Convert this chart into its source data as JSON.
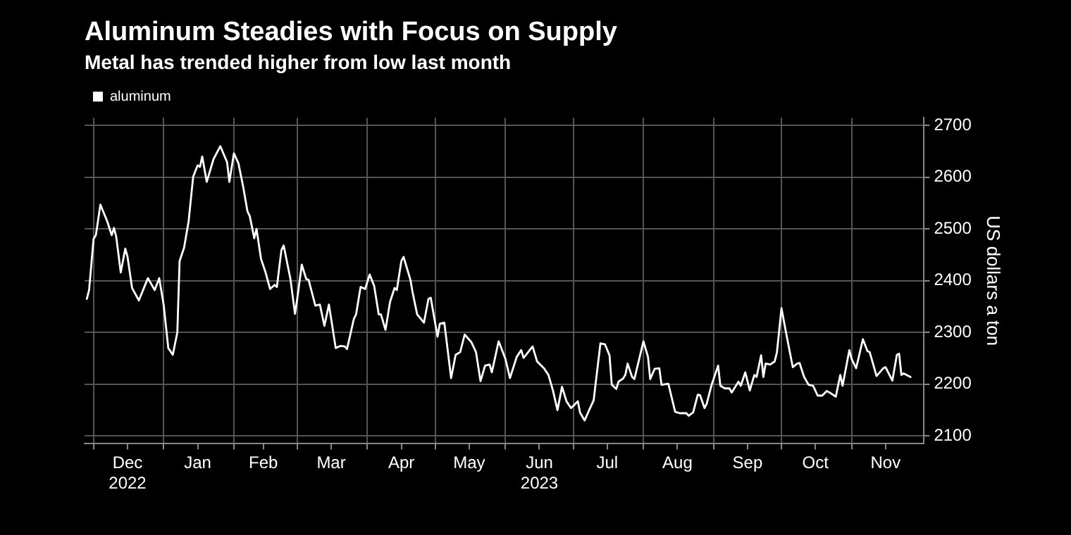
{
  "chart_data": {
    "type": "line",
    "title": "Aluminum Steadies with Focus on Supply",
    "subtitle": "Metal has trended higher from low last month",
    "ylabel": "US dollars a ton",
    "x": [
      "2022-11-28",
      "2022-11-29",
      "2022-12-01",
      "2022-12-02",
      "2022-12-04",
      "2022-12-07",
      "2022-12-09",
      "2022-12-10",
      "2022-12-11",
      "2022-12-13",
      "2022-12-15",
      "2022-12-16",
      "2022-12-18",
      "2022-12-21",
      "2022-12-25",
      "2022-12-28",
      "2022-12-30",
      "2023-01-01",
      "2023-01-03",
      "2023-01-05",
      "2023-01-07",
      "2023-01-08",
      "2023-01-10",
      "2023-01-12",
      "2023-01-14",
      "2023-01-16",
      "2023-01-17",
      "2023-01-18",
      "2023-01-20",
      "2023-01-23",
      "2023-01-26",
      "2023-01-29",
      "2023-01-30",
      "2023-02-01",
      "2023-02-03",
      "2023-02-05",
      "2023-02-07",
      "2023-02-08",
      "2023-02-10",
      "2023-02-11",
      "2023-02-13",
      "2023-02-15",
      "2023-02-17",
      "2023-02-19",
      "2023-02-20",
      "2023-02-22",
      "2023-02-23",
      "2023-02-26",
      "2023-02-28",
      "2023-03-01",
      "2023-03-03",
      "2023-03-05",
      "2023-03-06",
      "2023-03-09",
      "2023-03-11",
      "2023-03-13",
      "2023-03-15",
      "2023-03-18",
      "2023-03-20",
      "2023-03-22",
      "2023-03-23",
      "2023-03-26",
      "2023-03-27",
      "2023-03-29",
      "2023-03-31",
      "2023-04-02",
      "2023-04-04",
      "2023-04-06",
      "2023-04-07",
      "2023-04-09",
      "2023-04-11",
      "2023-04-13",
      "2023-04-14",
      "2023-04-16",
      "2023-04-17",
      "2023-04-20",
      "2023-04-21",
      "2023-04-23",
      "2023-04-26",
      "2023-04-28",
      "2023-04-29",
      "2023-05-02",
      "2023-05-03",
      "2023-05-05",
      "2023-05-08",
      "2023-05-10",
      "2023-05-12",
      "2023-05-14",
      "2023-05-17",
      "2023-05-19",
      "2023-05-21",
      "2023-05-23",
      "2023-05-25",
      "2023-05-26",
      "2023-05-29",
      "2023-06-01",
      "2023-06-03",
      "2023-06-06",
      "2023-06-08",
      "2023-06-09",
      "2023-06-10",
      "2023-06-13",
      "2023-06-15",
      "2023-06-18",
      "2023-06-20",
      "2023-06-22",
      "2023-06-24",
      "2023-06-26",
      "2023-06-28",
      "2023-06-30",
      "2023-07-03",
      "2023-07-04",
      "2023-07-06",
      "2023-07-08",
      "2023-07-10",
      "2023-07-11",
      "2023-07-13",
      "2023-07-15",
      "2023-07-17",
      "2023-07-18",
      "2023-07-20",
      "2023-07-21",
      "2023-07-23",
      "2023-07-24",
      "2023-07-25",
      "2023-07-27",
      "2023-07-28",
      "2023-08-01",
      "2023-08-03",
      "2023-08-04",
      "2023-08-06",
      "2023-08-08",
      "2023-08-09",
      "2023-08-12",
      "2023-08-15",
      "2023-08-17",
      "2023-08-20",
      "2023-08-21",
      "2023-08-23",
      "2023-08-25",
      "2023-08-26",
      "2023-08-28",
      "2023-08-29",
      "2023-08-31",
      "2023-09-03",
      "2023-09-04",
      "2023-09-06",
      "2023-09-08",
      "2023-09-09",
      "2023-09-12",
      "2023-09-13",
      "2023-09-15",
      "2023-09-17",
      "2023-09-19",
      "2023-09-20",
      "2023-09-22",
      "2023-09-23",
      "2023-09-24",
      "2023-09-26",
      "2023-09-28",
      "2023-09-29",
      "2023-10-01",
      "2023-10-03",
      "2023-10-06",
      "2023-10-08",
      "2023-10-09",
      "2023-10-11",
      "2023-10-13",
      "2023-10-15",
      "2023-10-17",
      "2023-10-19",
      "2023-10-21",
      "2023-10-23",
      "2023-10-25",
      "2023-10-27",
      "2023-10-28",
      "2023-10-31",
      "2023-11-01",
      "2023-11-03",
      "2023-11-06",
      "2023-11-08",
      "2023-11-09",
      "2023-11-12",
      "2023-11-15",
      "2023-11-16",
      "2023-11-19",
      "2023-11-21",
      "2023-11-22",
      "2023-11-23",
      "2023-11-24",
      "2023-11-27"
    ],
    "series": [
      {
        "name": "aluminum",
        "color": "#ffffff",
        "values": [
          2365,
          2382,
          2481,
          2488,
          2547,
          2515,
          2488,
          2502,
          2485,
          2416,
          2462,
          2446,
          2386,
          2362,
          2405,
          2382,
          2405,
          2352,
          2270,
          2257,
          2300,
          2438,
          2464,
          2515,
          2601,
          2623,
          2620,
          2640,
          2591,
          2635,
          2660,
          2629,
          2591,
          2646,
          2627,
          2584,
          2534,
          2525,
          2482,
          2500,
          2442,
          2416,
          2384,
          2392,
          2388,
          2459,
          2468,
          2403,
          2336,
          2365,
          2431,
          2403,
          2402,
          2352,
          2354,
          2313,
          2354,
          2270,
          2274,
          2273,
          2268,
          2326,
          2335,
          2388,
          2384,
          2412,
          2390,
          2335,
          2335,
          2305,
          2359,
          2386,
          2382,
          2438,
          2446,
          2402,
          2377,
          2335,
          2319,
          2365,
          2367,
          2292,
          2317,
          2319,
          2212,
          2257,
          2262,
          2296,
          2281,
          2262,
          2206,
          2236,
          2238,
          2223,
          2283,
          2249,
          2212,
          2253,
          2266,
          2251,
          2256,
          2273,
          2244,
          2231,
          2218,
          2188,
          2150,
          2195,
          2167,
          2154,
          2167,
          2145,
          2130,
          2150,
          2169,
          2206,
          2279,
          2277,
          2256,
          2199,
          2191,
          2205,
          2211,
          2218,
          2240,
          2214,
          2210,
          2283,
          2253,
          2210,
          2230,
          2231,
          2199,
          2201,
          2147,
          2144,
          2144,
          2139,
          2146,
          2180,
          2179,
          2154,
          2163,
          2197,
          2236,
          2197,
          2192,
          2192,
          2184,
          2205,
          2197,
          2223,
          2188,
          2218,
          2214,
          2256,
          2214,
          2240,
          2238,
          2244,
          2262,
          2347,
          2300,
          2233,
          2240,
          2241,
          2214,
          2199,
          2197,
          2178,
          2178,
          2187,
          2182,
          2176,
          2218,
          2197,
          2266,
          2249,
          2231,
          2287,
          2264,
          2262,
          2216,
          2231,
          2233,
          2207,
          2257,
          2259,
          2218,
          2221,
          2214
        ]
      }
    ],
    "xlim": [
      "2022-11-27",
      "2023-12-03"
    ],
    "xticks": [
      {
        "value": "2022-12-01",
        "label": null
      },
      {
        "value": "2022-12-16",
        "label": "Dec\n2022"
      },
      {
        "value": "2023-01-01",
        "label": null
      },
      {
        "value": "2023-01-16",
        "label": "Jan"
      },
      {
        "value": "2023-02-01",
        "label": null
      },
      {
        "value": "2023-02-14",
        "label": "Feb"
      },
      {
        "value": "2023-03-01",
        "label": null
      },
      {
        "value": "2023-03-16",
        "label": "Mar"
      },
      {
        "value": "2023-04-01",
        "label": null
      },
      {
        "value": "2023-04-16",
        "label": "Apr"
      },
      {
        "value": "2023-05-01",
        "label": null
      },
      {
        "value": "2023-05-16",
        "label": "May"
      },
      {
        "value": "2023-06-01",
        "label": null
      },
      {
        "value": "2023-06-16",
        "label": "Jun\n2023"
      },
      {
        "value": "2023-07-01",
        "label": null
      },
      {
        "value": "2023-07-16",
        "label": "Jul"
      },
      {
        "value": "2023-08-01",
        "label": null
      },
      {
        "value": "2023-08-16",
        "label": "Aug"
      },
      {
        "value": "2023-09-01",
        "label": null
      },
      {
        "value": "2023-09-16",
        "label": "Sep"
      },
      {
        "value": "2023-10-01",
        "label": null
      },
      {
        "value": "2023-10-16",
        "label": "Oct"
      },
      {
        "value": "2023-11-01",
        "label": null
      },
      {
        "value": "2023-11-16",
        "label": "Nov"
      }
    ],
    "ylim": [
      2085,
      2715
    ],
    "yticks": [
      2100,
      2200,
      2300,
      2400,
      2500,
      2600,
      2700
    ],
    "grid": true,
    "legend": "top left",
    "marker": "none",
    "line_style": "solid"
  }
}
